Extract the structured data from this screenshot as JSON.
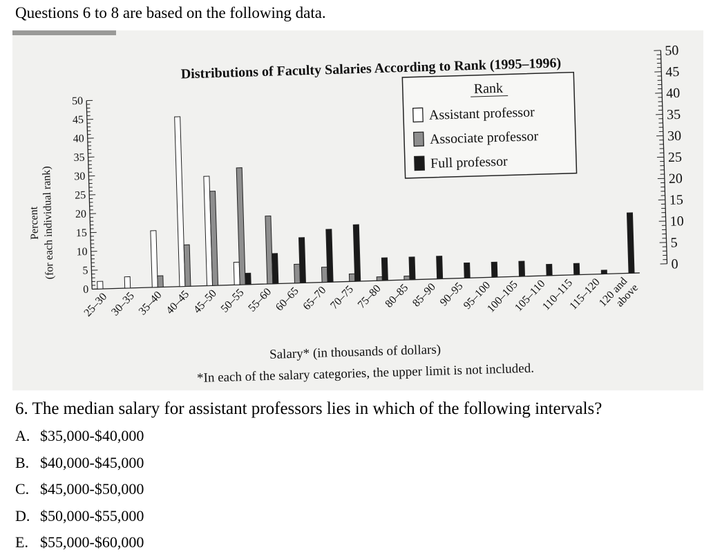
{
  "intro": "Questions 6 to 8 are based on the following data.",
  "question": {
    "text": "6. The median salary for assistant professors lies in which of the following intervals?",
    "options": [
      {
        "letter": "A.",
        "text": "$35,000-$40,000"
      },
      {
        "letter": "B.",
        "text": "$40,000-$45,000"
      },
      {
        "letter": "C.",
        "text": "$45,000-$50,000"
      },
      {
        "letter": "D.",
        "text": "$50,000-$55,000"
      },
      {
        "letter": "E.",
        "text": "$55,000-$60,000"
      }
    ]
  },
  "chart_data": {
    "type": "bar",
    "title": "Distributions of Faculty Salaries According to Rank (1995–1996)",
    "xlabel": "Salary* (in thousands of dollars)",
    "footnote": "*In each of the salary categories, the upper limit is not included.",
    "ylabel_line1": "Percent",
    "ylabel_line2": "(for each individual rank)",
    "ylim": [
      0,
      50
    ],
    "yticks": [
      "0",
      "5",
      "10",
      "15",
      "20",
      "25",
      "30",
      "35",
      "40",
      "45",
      "50"
    ],
    "legend_title": "Rank",
    "legend_position": "top-right",
    "categories": [
      "25–30",
      "30–35",
      "35–40",
      "40–45",
      "45–50",
      "50–55",
      "55–60",
      "60–65",
      "65–70",
      "70–75",
      "75–80",
      "80–85",
      "85–90",
      "90–95",
      "95–100",
      "100–105",
      "105–110",
      "110–115",
      "115–120",
      "120 and above"
    ],
    "series": [
      {
        "name": "Assistant professor",
        "color": "#ffffff",
        "values": [
          2,
          3,
          15,
          45,
          29,
          6,
          0,
          0,
          0,
          0,
          0,
          0,
          0,
          0,
          0,
          0,
          0,
          0,
          0,
          0
        ]
      },
      {
        "name": "Associate professor",
        "color": "#8e8e8e",
        "values": [
          0,
          0,
          3,
          11,
          25,
          31,
          18,
          5,
          4,
          2,
          1,
          1,
          0,
          0,
          0,
          0,
          0,
          0,
          0,
          0
        ]
      },
      {
        "name": "Full professor",
        "color": "#1a1a1a",
        "values": [
          0,
          0,
          0,
          0,
          0,
          3,
          8,
          12,
          14,
          15,
          6,
          6,
          6,
          4,
          4,
          4,
          3,
          3,
          1,
          16
        ]
      }
    ]
  }
}
